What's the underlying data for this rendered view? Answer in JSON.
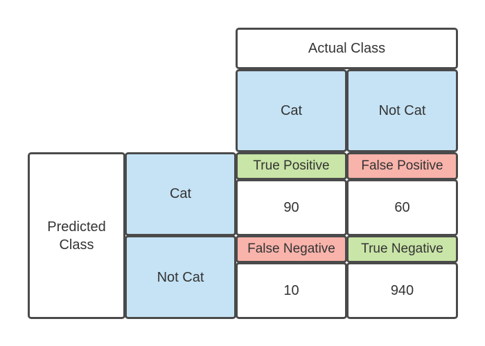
{
  "actual_class": {
    "header": "Actual Class",
    "categories": [
      "Cat",
      "Not Cat"
    ]
  },
  "predicted_class": {
    "header": "Predicted\nClass",
    "categories": [
      "Cat",
      "Not Cat"
    ]
  },
  "cells": [
    {
      "label": "True Positive",
      "value": "90",
      "color": "#c9e5a7"
    },
    {
      "label": "False Positive",
      "value": "60",
      "color": "#f8b3ab"
    },
    {
      "label": "False Negative",
      "value": "10",
      "color": "#f8b3ab"
    },
    {
      "label": "True Negative",
      "value": "940",
      "color": "#c9e5a7"
    }
  ],
  "colors": {
    "header_fill": "#c5e3f5",
    "border": "#4a4a4a"
  }
}
